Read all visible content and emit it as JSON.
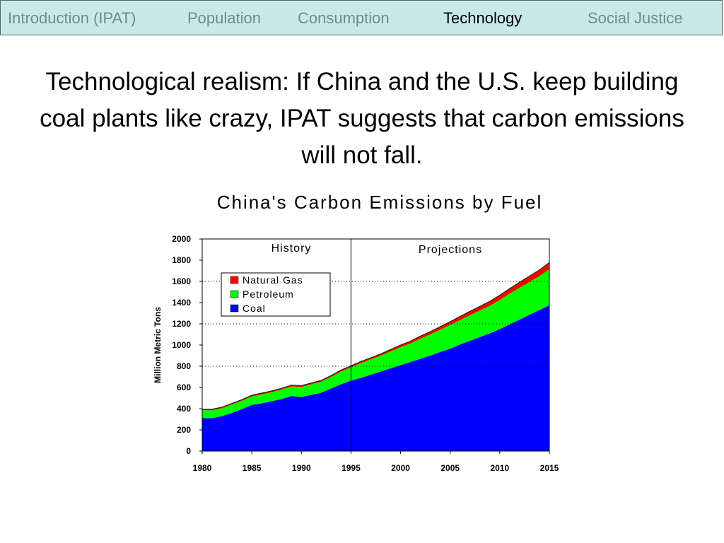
{
  "nav": {
    "tabs": [
      {
        "label": "Introduction (IPAT)",
        "active": false
      },
      {
        "label": "Population",
        "active": false
      },
      {
        "label": "Consumption",
        "active": false
      },
      {
        "label": "Technology",
        "active": true
      },
      {
        "label": "Social Justice",
        "active": false
      }
    ]
  },
  "slide": {
    "headline": "Technological realism: If China and the U.S. keep building coal plants like crazy, IPAT suggests that carbon emissions will not fall."
  },
  "colors": {
    "nav_background": "#c9e9e7",
    "coal": "#0000ff",
    "petroleum": "#00ff00",
    "natural_gas": "#ff0000"
  },
  "chart_data": {
    "type": "area",
    "stacked": true,
    "title": "China's Carbon Emissions by Fuel",
    "xlabel": "",
    "ylabel": "Million Metric Tons",
    "xlim": [
      1980,
      2015
    ],
    "ylim": [
      0,
      2000
    ],
    "x_ticks": [
      "1980",
      "1985",
      "1990",
      "1995",
      "2000",
      "2005",
      "2010",
      "2015"
    ],
    "y_ticks": [
      "0",
      "200",
      "400",
      "600",
      "800",
      "1000",
      "1200",
      "1400",
      "1600",
      "1800",
      "2000"
    ],
    "grid": "dotted horizontal lines at 800, 1200 and 1600",
    "divider_x": 1995,
    "annotations": [
      "History",
      "Projections"
    ],
    "legend_position": "top-left",
    "legend": [
      "Natural Gas",
      "Petroleum",
      "Coal"
    ],
    "x": [
      1980,
      1981,
      1982,
      1983,
      1984,
      1985,
      1986,
      1987,
      1988,
      1989,
      1990,
      1991,
      1992,
      1993,
      1994,
      1995,
      1996,
      1997,
      1998,
      1999,
      2000,
      2001,
      2002,
      2003,
      2004,
      2005,
      2006,
      2007,
      2008,
      2009,
      2010,
      2011,
      2012,
      2013,
      2014,
      2015
    ],
    "series": [
      {
        "name": "Coal",
        "color": "#0000ff",
        "values": [
          310,
          310,
          330,
          360,
          395,
          435,
          450,
          470,
          490,
          520,
          510,
          530,
          550,
          590,
          630,
          665,
          690,
          720,
          750,
          780,
          810,
          840,
          870,
          900,
          935,
          965,
          1005,
          1040,
          1075,
          1110,
          1150,
          1195,
          1240,
          1285,
          1330,
          1375
        ]
      },
      {
        "name": "Petroleum",
        "color": "#00ff00",
        "values": [
          75,
          75,
          75,
          80,
          80,
          80,
          85,
          85,
          90,
          90,
          95,
          100,
          105,
          110,
          120,
          125,
          140,
          145,
          150,
          160,
          170,
          175,
          190,
          200,
          210,
          225,
          230,
          240,
          250,
          260,
          275,
          290,
          300,
          310,
          320,
          340
        ]
      },
      {
        "name": "Natural Gas",
        "color": "#ff0000",
        "values": [
          10,
          10,
          10,
          10,
          10,
          12,
          12,
          12,
          12,
          12,
          12,
          12,
          12,
          12,
          14,
          14,
          15,
          15,
          16,
          18,
          20,
          22,
          24,
          26,
          28,
          30,
          35,
          38,
          40,
          42,
          45,
          48,
          52,
          55,
          58,
          62
        ]
      }
    ]
  }
}
